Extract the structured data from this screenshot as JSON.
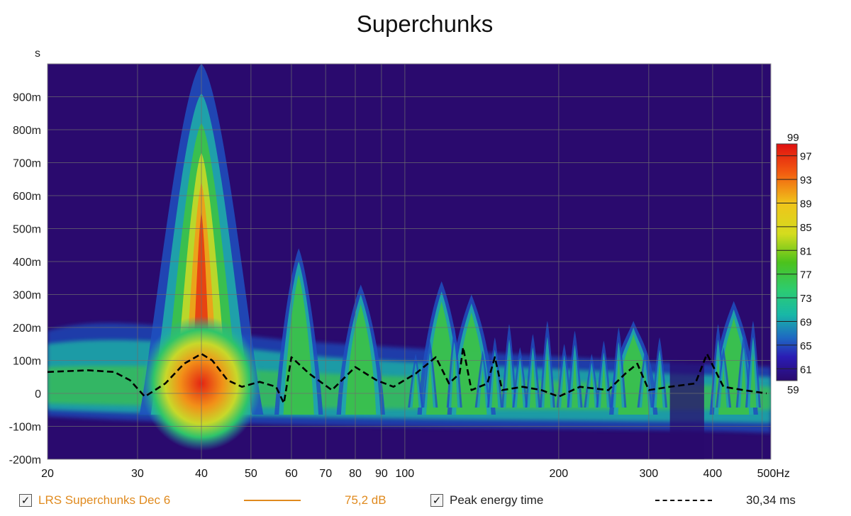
{
  "chart_data": {
    "type": "heatmap",
    "title": "Superchunks",
    "ylabel": "s",
    "x_scale": "log",
    "xlim": [
      20,
      520
    ],
    "ylim": [
      -0.2,
      1.0
    ],
    "x_ticks": [
      {
        "value": 20,
        "label": "20"
      },
      {
        "value": 30,
        "label": "30"
      },
      {
        "value": 40,
        "label": "40"
      },
      {
        "value": 50,
        "label": "50"
      },
      {
        "value": 60,
        "label": "60"
      },
      {
        "value": 70,
        "label": "70"
      },
      {
        "value": 80,
        "label": "80"
      },
      {
        "value": 90,
        "label": "90"
      },
      {
        "value": 100,
        "label": "100"
      },
      {
        "value": 200,
        "label": "200"
      },
      {
        "value": 300,
        "label": "300"
      },
      {
        "value": 400,
        "label": "400"
      },
      {
        "value": 500,
        "label": "500Hz"
      }
    ],
    "y_ticks": [
      {
        "value": 0.9,
        "label": "900m"
      },
      {
        "value": 0.8,
        "label": "800m"
      },
      {
        "value": 0.7,
        "label": "700m"
      },
      {
        "value": 0.6,
        "label": "600m"
      },
      {
        "value": 0.5,
        "label": "500m"
      },
      {
        "value": 0.4,
        "label": "400m"
      },
      {
        "value": 0.3,
        "label": "300m"
      },
      {
        "value": 0.2,
        "label": "200m"
      },
      {
        "value": 0.1,
        "label": "100m"
      },
      {
        "value": 0.0,
        "label": "0"
      },
      {
        "value": -0.1,
        "label": "-100m"
      },
      {
        "value": -0.2,
        "label": "-200m"
      }
    ],
    "colorbar": {
      "min": 59,
      "max": 99,
      "labels": [
        "99",
        "97",
        "93",
        "89",
        "85",
        "81",
        "77",
        "73",
        "69",
        "65",
        "61",
        "59"
      ]
    },
    "background_color": "#2a0a6e",
    "peaks": [
      {
        "freq": 40,
        "time_extent": 1.0,
        "level": 97
      },
      {
        "freq": 62,
        "time_extent": 0.44,
        "level": 80
      },
      {
        "freq": 82,
        "time_extent": 0.33,
        "level": 78
      },
      {
        "freq": 118,
        "time_extent": 0.34,
        "level": 76
      },
      {
        "freq": 135,
        "time_extent": 0.3,
        "level": 76
      },
      {
        "freq": 280,
        "time_extent": 0.22,
        "level": 74
      },
      {
        "freq": 440,
        "time_extent": 0.28,
        "level": 74
      }
    ],
    "series": [
      {
        "name": "Peak energy time",
        "style": "dashed",
        "color": "#000000",
        "x": [
          20,
          24,
          27,
          29,
          31,
          34,
          37,
          40,
          42,
          45,
          48,
          52,
          56,
          58,
          60,
          65,
          72,
          80,
          88,
          95,
          105,
          115,
          122,
          128,
          130,
          135,
          145,
          150,
          155,
          170,
          185,
          200,
          220,
          250,
          270,
          285,
          300,
          330,
          370,
          390,
          420,
          460,
          510
        ],
        "y": [
          0.065,
          0.07,
          0.065,
          0.04,
          -0.01,
          0.03,
          0.09,
          0.12,
          0.1,
          0.04,
          0.02,
          0.035,
          0.02,
          -0.03,
          0.11,
          0.06,
          0.01,
          0.08,
          0.04,
          0.02,
          0.06,
          0.11,
          0.03,
          0.06,
          0.14,
          0.01,
          0.03,
          0.11,
          0.01,
          0.02,
          0.01,
          -0.01,
          0.02,
          0.01,
          0.06,
          0.09,
          0.01,
          0.02,
          0.03,
          0.12,
          0.02,
          0.01,
          0.0
        ]
      }
    ]
  },
  "legend": {
    "item1": {
      "label": "LRS Superchunks Dec 6",
      "value": "75,2 dB",
      "color": "#e08a1e",
      "checked": "✓"
    },
    "item2": {
      "label": "Peak energy time",
      "value": "30,34 ms",
      "color": "#000000",
      "checked": "✓"
    }
  }
}
